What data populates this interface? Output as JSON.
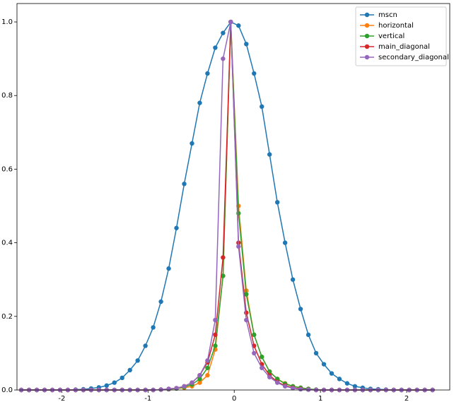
{
  "chart_data": {
    "type": "line",
    "x": [
      -2.47,
      -2.38,
      -2.29,
      -2.2,
      -2.11,
      -2.02,
      -1.93,
      -1.84,
      -1.75,
      -1.66,
      -1.57,
      -1.48,
      -1.39,
      -1.3,
      -1.21,
      -1.12,
      -1.03,
      -0.94,
      -0.85,
      -0.76,
      -0.67,
      -0.58,
      -0.49,
      -0.4,
      -0.31,
      -0.22,
      -0.13,
      -0.04,
      0.05,
      0.14,
      0.23,
      0.32,
      0.41,
      0.5,
      0.59,
      0.68,
      0.77,
      0.86,
      0.95,
      1.04,
      1.13,
      1.22,
      1.31,
      1.4,
      1.49,
      1.58,
      1.67,
      1.76,
      1.85,
      1.94,
      2.03,
      2.12,
      2.21,
      2.3
    ],
    "series": [
      {
        "name": "mscn",
        "color": "#1f77b4",
        "values": [
          0,
          0,
          0,
          0,
          0,
          0,
          0,
          0.001,
          0.002,
          0.004,
          0.007,
          0.012,
          0.02,
          0.033,
          0.054,
          0.08,
          0.12,
          0.17,
          0.24,
          0.33,
          0.44,
          0.56,
          0.67,
          0.78,
          0.86,
          0.93,
          0.97,
          1.0,
          0.99,
          0.94,
          0.86,
          0.77,
          0.64,
          0.51,
          0.4,
          0.3,
          0.22,
          0.15,
          0.1,
          0.07,
          0.045,
          0.03,
          0.018,
          0.01,
          0.006,
          0.003,
          0.002,
          0.001,
          0,
          0,
          0,
          0,
          0,
          0
        ]
      },
      {
        "name": "horizontal",
        "color": "#ff7f0e",
        "values": [
          0,
          0,
          0,
          0,
          0,
          0,
          0,
          0,
          0,
          0,
          0,
          0,
          0,
          0,
          0,
          0,
          0,
          0,
          0.001,
          0.002,
          0.004,
          0.006,
          0.01,
          0.02,
          0.04,
          0.11,
          0.31,
          1.0,
          0.5,
          0.27,
          0.15,
          0.09,
          0.05,
          0.03,
          0.018,
          0.01,
          0.006,
          0.003,
          0,
          0,
          0,
          0,
          0,
          0,
          0,
          0,
          0,
          0,
          0,
          0,
          0,
          0,
          0,
          0
        ]
      },
      {
        "name": "vertical",
        "color": "#2ca02c",
        "values": [
          0,
          0,
          0,
          0,
          0,
          0,
          0,
          0,
          0,
          0,
          0,
          0,
          0,
          0,
          0,
          0,
          0,
          0,
          0.001,
          0.002,
          0.004,
          0.008,
          0.015,
          0.03,
          0.06,
          0.12,
          0.31,
          1.0,
          0.48,
          0.26,
          0.15,
          0.09,
          0.05,
          0.03,
          0.017,
          0.01,
          0.006,
          0.003,
          0.001,
          0,
          0,
          0,
          0,
          0,
          0,
          0,
          0,
          0,
          0,
          0,
          0,
          0,
          0,
          0
        ]
      },
      {
        "name": "main_diagonal",
        "color": "#d62728",
        "values": [
          0,
          0,
          0,
          0,
          0,
          0,
          0,
          0,
          0,
          0,
          0,
          0,
          0,
          0,
          0,
          0,
          0,
          0,
          0.001,
          0.003,
          0.005,
          0.01,
          0.02,
          0.04,
          0.075,
          0.15,
          0.36,
          1.0,
          0.4,
          0.21,
          0.12,
          0.07,
          0.04,
          0.022,
          0.012,
          0.006,
          0.003,
          0.001,
          0,
          0,
          0,
          0,
          0,
          0,
          0,
          0,
          0,
          0,
          0,
          0,
          0,
          0,
          0,
          0
        ]
      },
      {
        "name": "secondary_diagonal",
        "color": "#9467bd",
        "values": [
          0,
          0,
          0,
          0,
          0,
          0,
          0,
          0,
          0,
          0,
          0,
          0,
          0,
          0,
          0,
          0,
          0,
          0,
          0.001,
          0.003,
          0.005,
          0.01,
          0.02,
          0.04,
          0.08,
          0.19,
          0.9,
          1.0,
          0.39,
          0.19,
          0.1,
          0.06,
          0.035,
          0.02,
          0.01,
          0.005,
          0.002,
          0.001,
          0,
          0,
          0,
          0,
          0,
          0,
          0,
          0,
          0,
          0,
          0,
          0,
          0,
          0,
          0,
          0
        ]
      }
    ],
    "xlim": [
      -2.52,
      2.5
    ],
    "ylim": [
      0,
      1.05
    ],
    "xticks": [
      -2,
      -1,
      0,
      1,
      2
    ],
    "yticks": [
      {
        "value": 0,
        "label": "0.0"
      },
      0.2,
      0.4,
      0.6,
      0.8,
      {
        "value": 1,
        "label": "1.0"
      }
    ],
    "legend": "upper right"
  }
}
